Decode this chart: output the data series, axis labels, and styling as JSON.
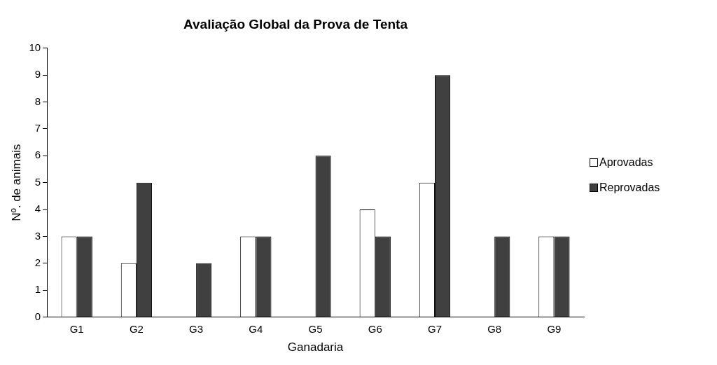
{
  "chart_data": {
    "type": "bar",
    "title": "Avaliação Global da Prova de Tenta",
    "xlabel": "Ganadaria",
    "ylabel": "Nº. de animais",
    "categories": [
      "G1",
      "G2",
      "G3",
      "G4",
      "G5",
      "G6",
      "G7",
      "G8",
      "G9"
    ],
    "series": [
      {
        "name": "Aprovadas",
        "color": "#ffffff",
        "values": [
          3,
          2,
          0,
          3,
          0,
          4,
          5,
          0,
          3
        ]
      },
      {
        "name": "Reprovadas",
        "color": "#404040",
        "values": [
          3,
          5,
          2,
          3,
          6,
          3,
          9,
          3,
          3
        ]
      }
    ],
    "ylim": [
      0,
      10
    ],
    "yticks": [
      0,
      1,
      2,
      3,
      4,
      5,
      6,
      7,
      8,
      9,
      10
    ],
    "grid": false,
    "legend": "right"
  }
}
